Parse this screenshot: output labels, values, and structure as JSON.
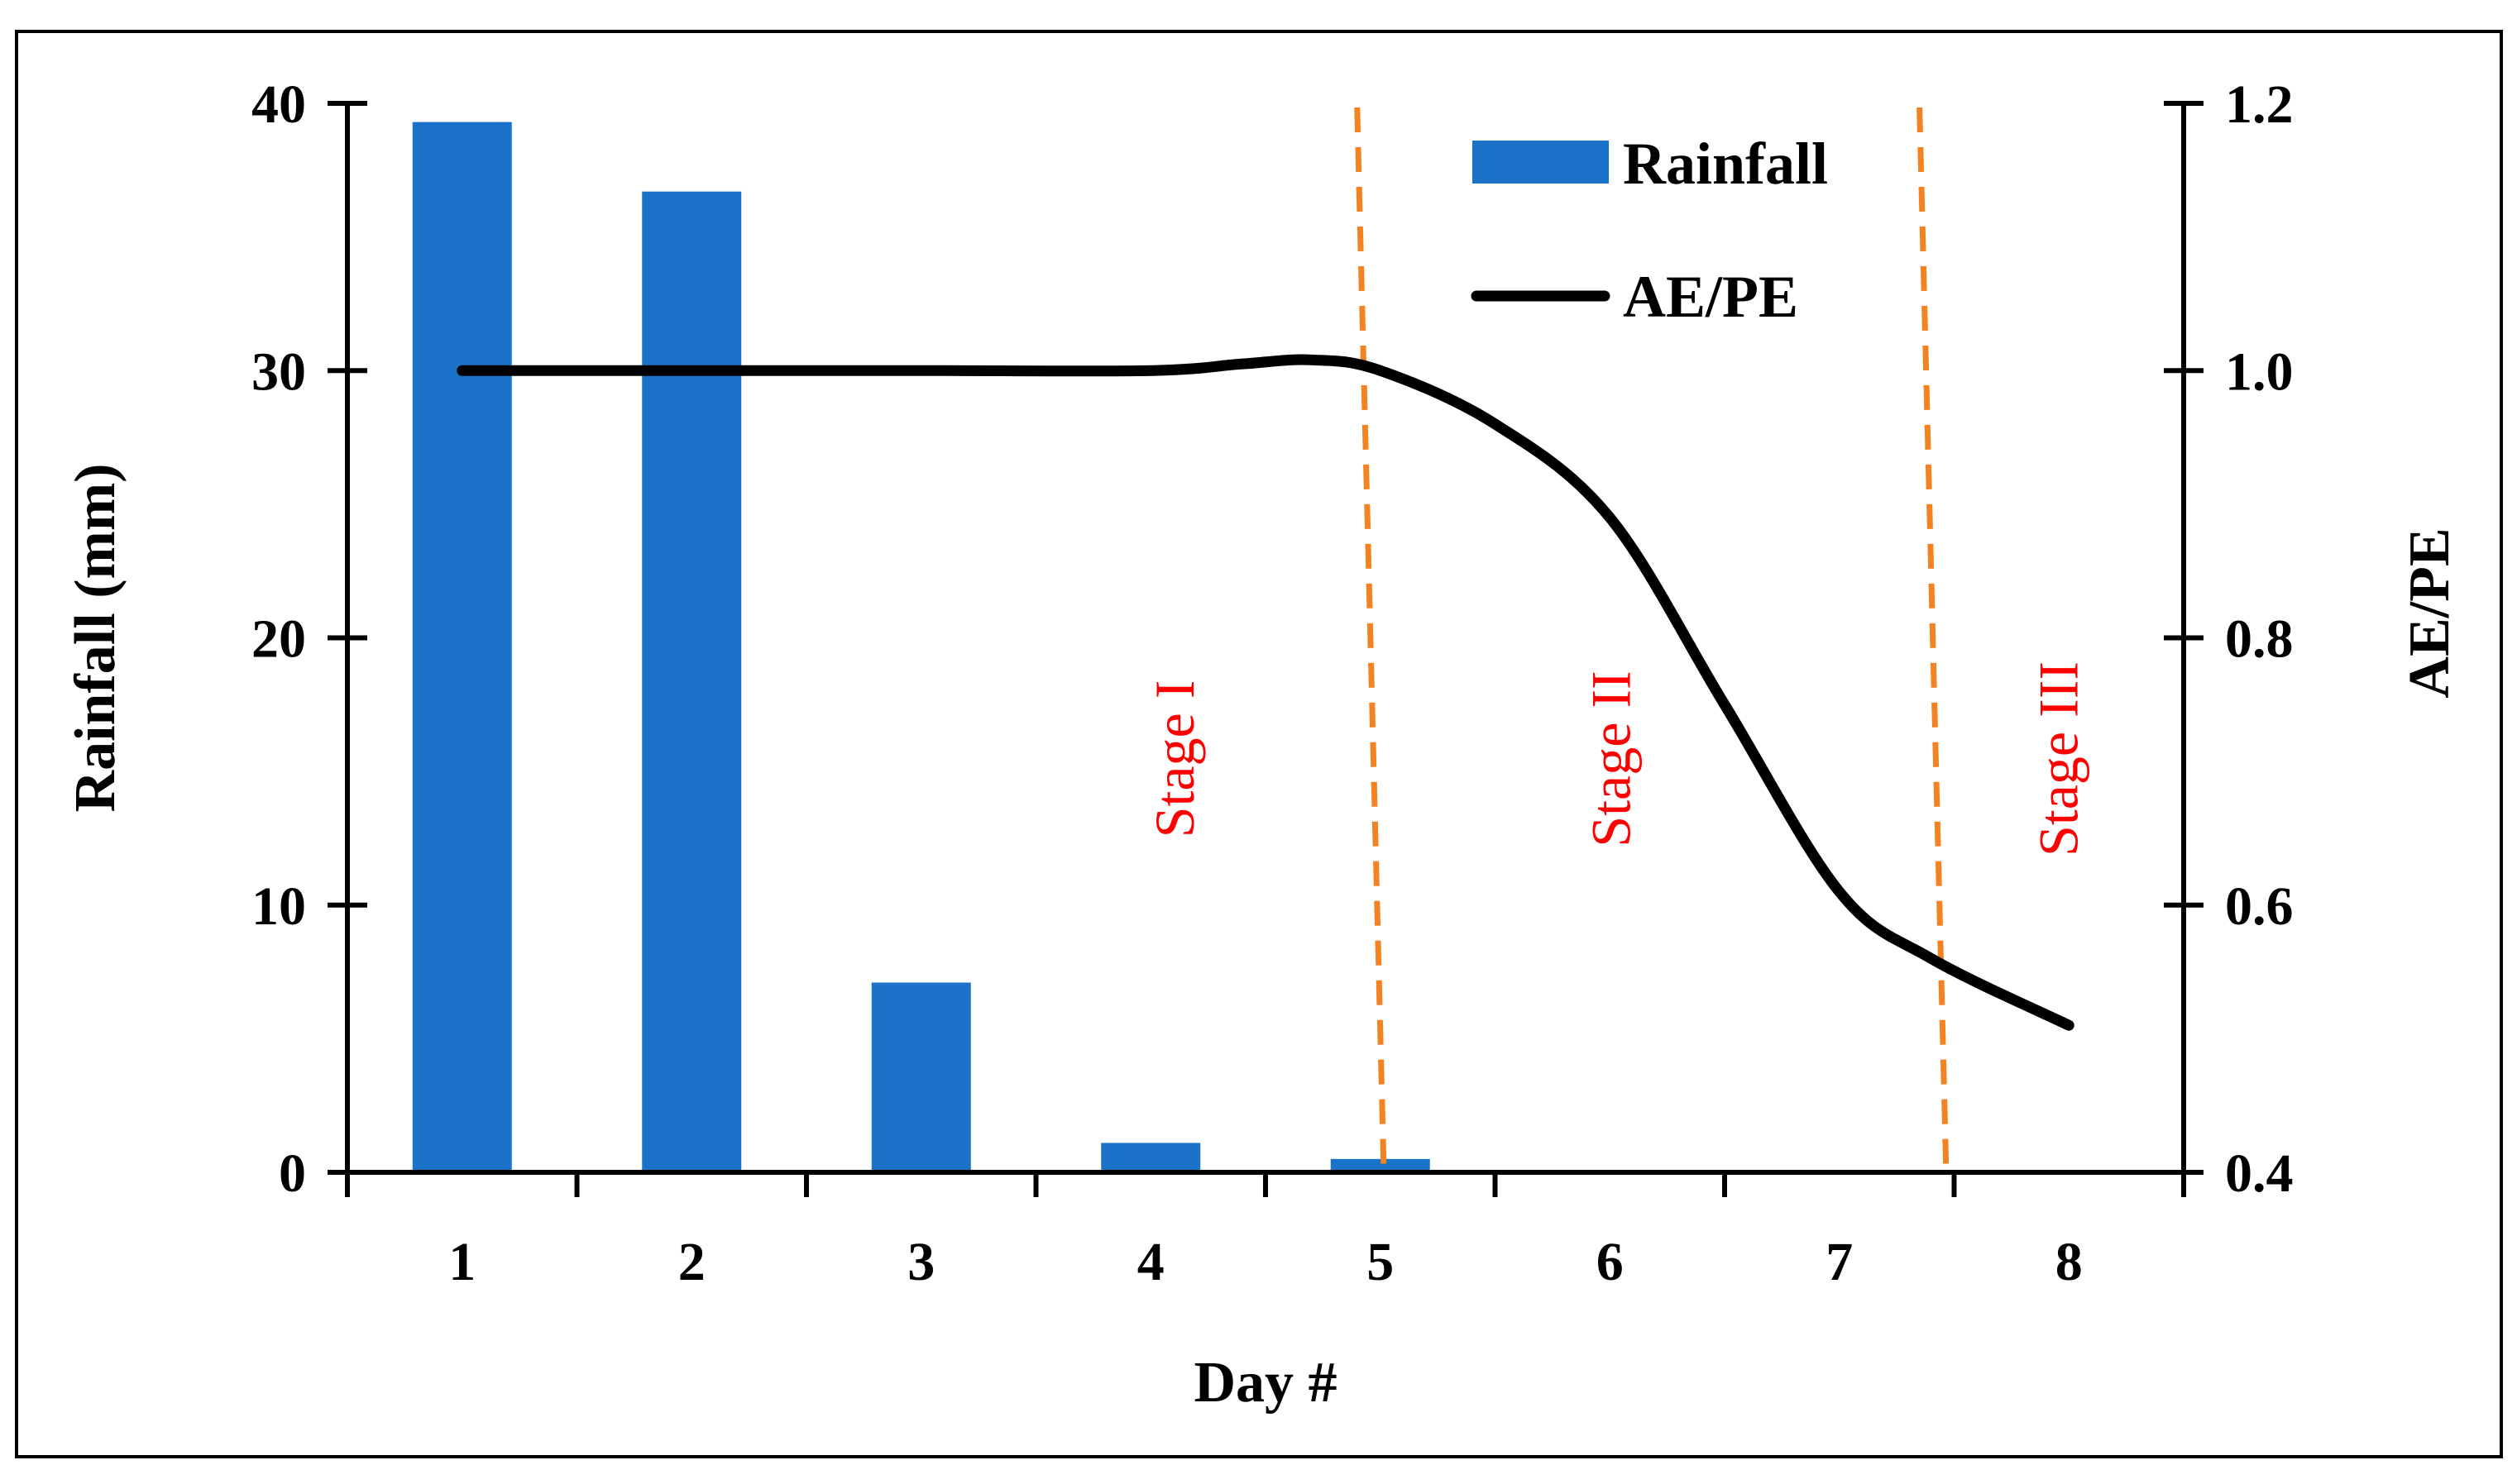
{
  "chart_data": {
    "type": "bar+line",
    "xlabel": "Day #",
    "ylabel_left": "Rainfall (mm)",
    "ylabel_right": "AE/PE",
    "categories": [
      "1",
      "2",
      "3",
      "4",
      "5",
      "6",
      "7",
      "8"
    ],
    "y_left": {
      "min": 0,
      "max": 40,
      "ticks": [
        "0",
        "10",
        "20",
        "30",
        "40"
      ]
    },
    "y_right": {
      "min": 0.4,
      "max": 1.2,
      "ticks": [
        "0.4",
        "0.6",
        "0.8",
        "1.0",
        "1.2"
      ]
    },
    "series": [
      {
        "name": "Rainfall",
        "type": "bar",
        "axis": "left",
        "color": "#1a73c9",
        "values": [
          39.3,
          36.7,
          7.1,
          1.1,
          0.5,
          0,
          0,
          0
        ]
      },
      {
        "name": "AE/PE",
        "type": "line",
        "axis": "right",
        "color": "#000000",
        "x": [
          1,
          2,
          3,
          4,
          4.4,
          4.7,
          5,
          5.5,
          6,
          6.5,
          7,
          7.4,
          8
        ],
        "values": [
          1.0,
          1.0,
          1.0,
          1.0,
          1.005,
          1.008,
          1.0,
          0.96,
          0.89,
          0.75,
          0.61,
          0.56,
          0.51
        ]
      }
    ],
    "stage_dividers": {
      "color": "#f48221",
      "x": [
        5.0,
        7.45
      ]
    },
    "annotations": [
      {
        "text": "Stage I",
        "x": 4.1
      },
      {
        "text": "Stage II",
        "x": 6.0
      },
      {
        "text": "Stage III",
        "x": 7.95
      }
    ],
    "legend": {
      "position": "top-center",
      "entries": [
        "Rainfall",
        "AE/PE"
      ]
    }
  }
}
